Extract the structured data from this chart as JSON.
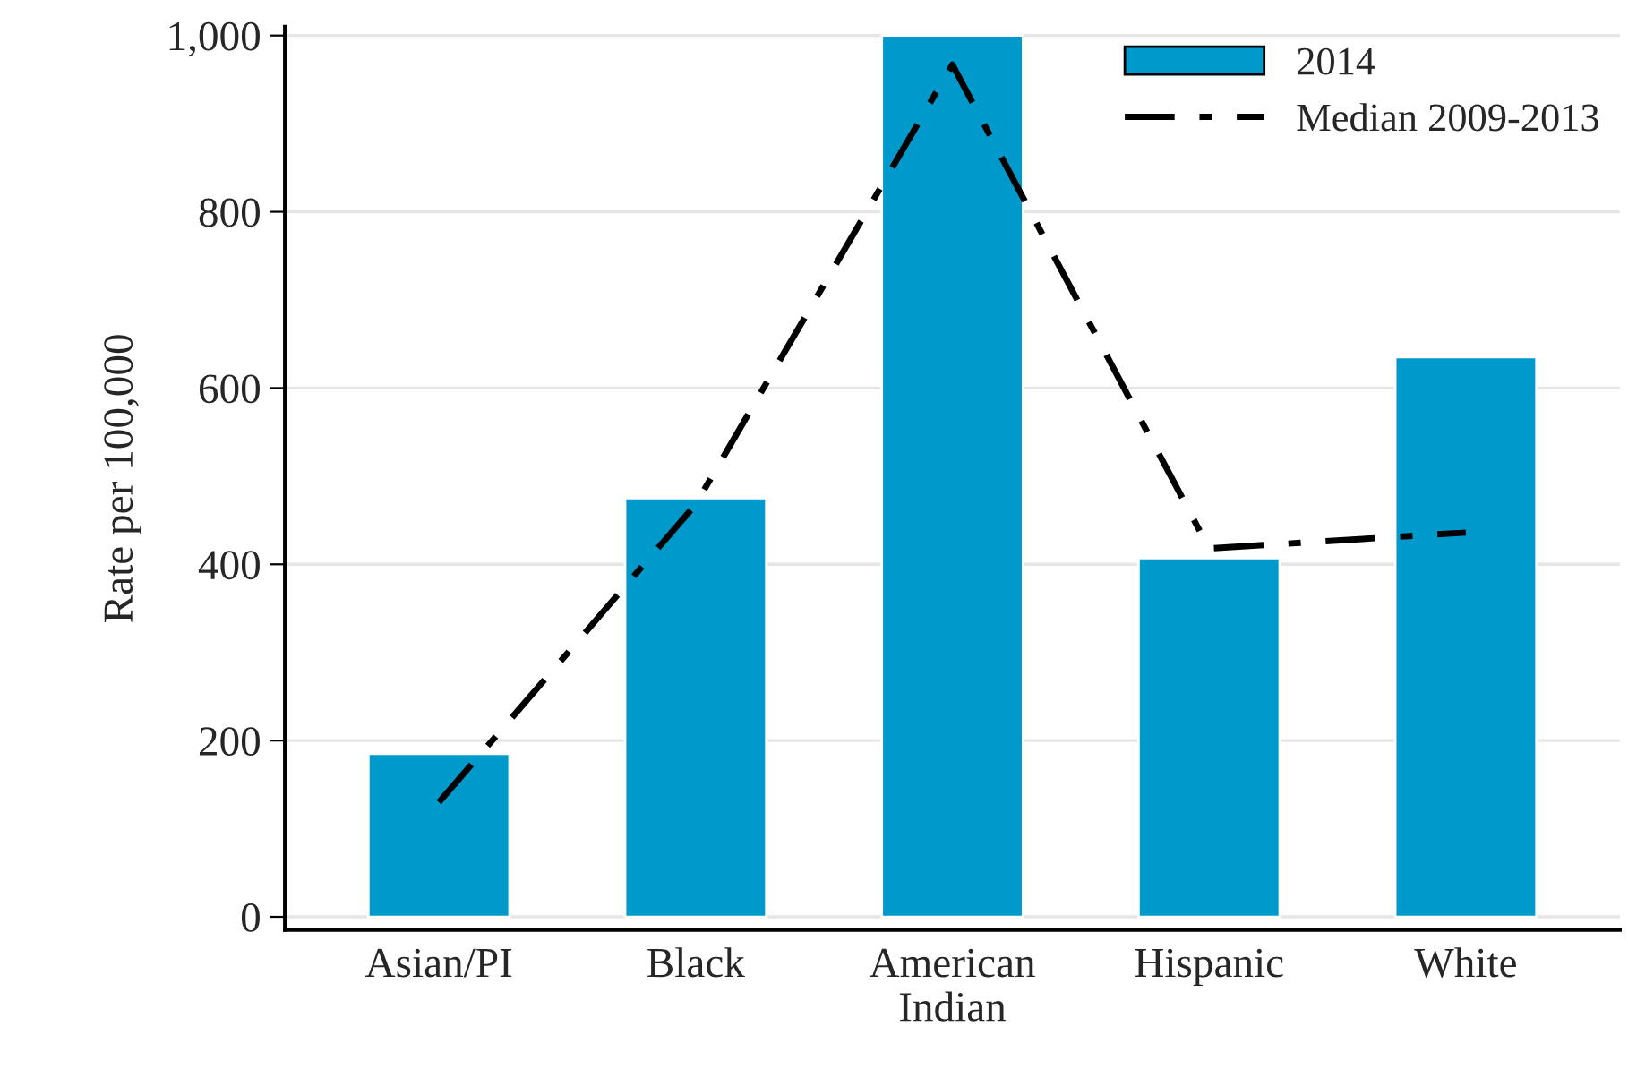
{
  "chart_data": {
    "type": "bar",
    "ylabel": "Rate per 100,000",
    "categories": [
      "Asian/PI",
      "Black",
      "American\nIndian",
      "Hispanic",
      "White"
    ],
    "series": [
      {
        "name": "2014",
        "color": "#0099cc",
        "values": [
          185,
          475,
          1000,
          407,
          635
        ]
      },
      {
        "name": "Median 2009-2013",
        "type": "line",
        "color": "#000000",
        "line_style": "dashed",
        "marker": "none",
        "values": [
          130,
          468,
          967,
          418,
          436
        ]
      }
    ],
    "ylim": [
      -15,
      1010
    ],
    "yticks": [
      0,
      200,
      400,
      600,
      800,
      {
        "value": 1000,
        "label": "1,000"
      }
    ],
    "grid": "y",
    "legend": "top right"
  }
}
